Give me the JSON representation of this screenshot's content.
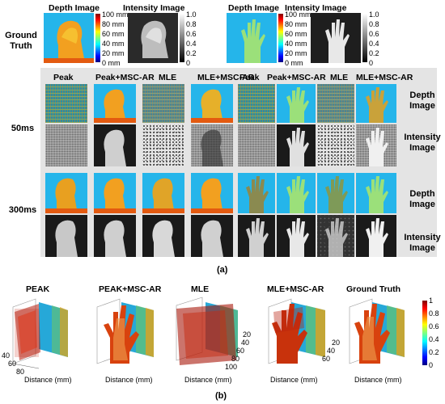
{
  "top_left": {
    "depth_header": "Depth Image",
    "intensity_header": "Intensity Image",
    "ground_truth_label_1": "Ground",
    "ground_truth_label_2": "Truth",
    "depth_ticks": [
      "100 mm",
      "80 mm",
      "60 mm",
      "40 mm",
      "20 mm",
      "0 mm"
    ],
    "intensity_ticks": [
      "1.0",
      "0.8",
      "0.6",
      "0.4",
      "0.2",
      "0"
    ]
  },
  "top_right": {
    "depth_header": "Depth Image",
    "intensity_header": "Intensity Image",
    "depth_ticks": [
      "100 mm",
      "80 mm",
      "60 mm",
      "40 mm",
      "20 mm",
      "0 mm"
    ],
    "intensity_ticks": [
      "1.0",
      "0.8",
      "0.6",
      "0.4",
      "0.2",
      "0"
    ]
  },
  "grid": {
    "columns": [
      "Peak",
      "Peak+MSC-AR",
      "MLE",
      "MLE+MSC-AR"
    ],
    "row_50ms": "50ms",
    "row_300ms": "300ms",
    "right_labels": {
      "depth_1": "Depth",
      "depth_2": "Image",
      "intensity_1": "Intensity",
      "intensity_2": "Image"
    }
  },
  "panel_a_label": "(a)",
  "panel_b": {
    "titles": [
      "PEAK",
      "PEAK+MSC-AR",
      "MLE",
      "MLE+MSC-AR",
      "Ground Truth"
    ],
    "xlabel": "Distance (mm)",
    "x_ticks": [
      "40",
      "60",
      "80"
    ],
    "x_ticks_mid": [
      "20",
      "40",
      "60",
      "80",
      "100"
    ],
    "colorbar_ticks": [
      "1",
      "0.8",
      "0.6",
      "0.4",
      "0.2",
      "0"
    ],
    "label": "(b)"
  },
  "colors": {
    "cyan_background": "#25b5ea",
    "floor_orange": "#e35a10",
    "hand_green": "#9be07a"
  }
}
